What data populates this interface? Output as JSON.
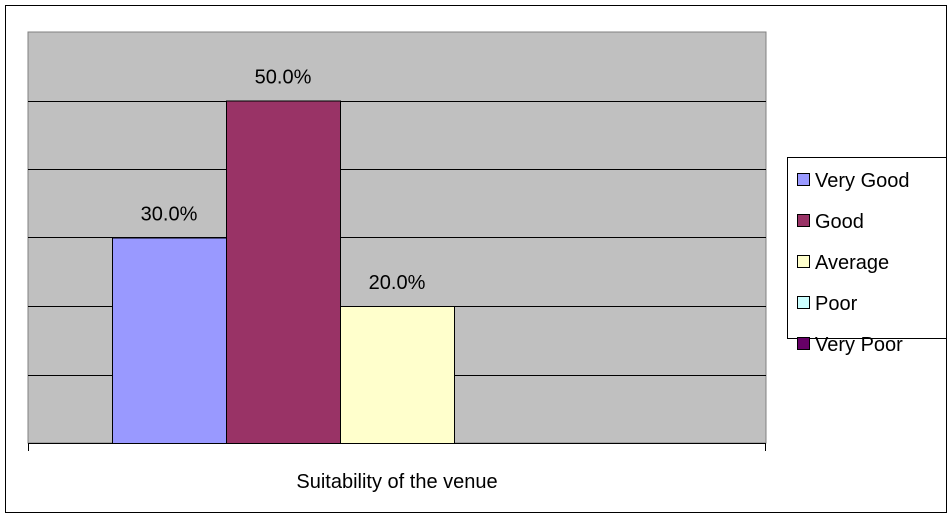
{
  "chart_data": {
    "type": "bar",
    "categories": [
      "Suitability of the venue"
    ],
    "xlabel": "Suitability of the venue",
    "ylabel": "",
    "ylim": [
      0,
      0.6
    ],
    "grid": true,
    "legend_position": "right",
    "series": [
      {
        "name": "Very Good",
        "values": [
          0.3
        ],
        "label": "30.0%",
        "color": "#9999ff"
      },
      {
        "name": "Good",
        "values": [
          0.5
        ],
        "label": "50.0%",
        "color": "#993366"
      },
      {
        "name": "Average",
        "values": [
          0.2
        ],
        "label": "20.0%",
        "color": "#ffffcc"
      },
      {
        "name": "Poor",
        "values": [
          0.0
        ],
        "label": "",
        "color": "#ccffff"
      },
      {
        "name": "Very Poor",
        "values": [
          0.0
        ],
        "label": "",
        "color": "#660066"
      }
    ]
  }
}
